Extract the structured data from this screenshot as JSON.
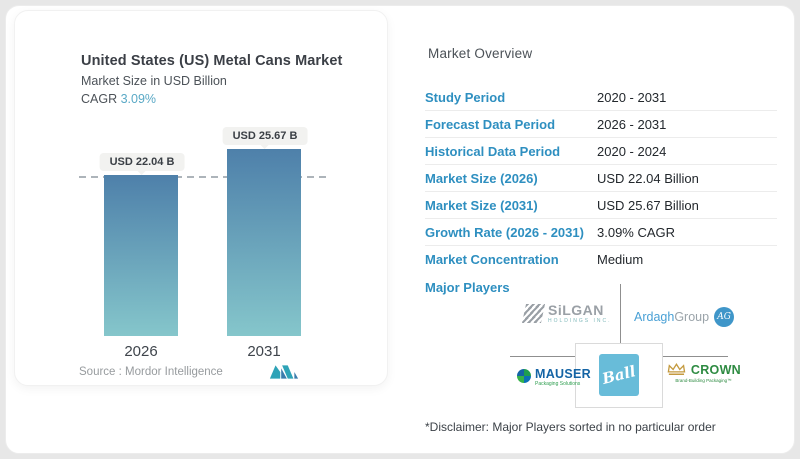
{
  "chart": {
    "title": "United States (US) Metal Cans Market",
    "subtitle": "Market Size in USD Billion",
    "cagr_label": "CAGR ",
    "cagr_value": "3.09%",
    "source_label": "Source :  ",
    "source_value": "Mordor Intelligence"
  },
  "chart_data": {
    "type": "bar",
    "categories": [
      "2026",
      "2031"
    ],
    "values": [
      22.04,
      25.67
    ],
    "value_labels": [
      "USD 22.04 B",
      "USD 25.67 B"
    ],
    "title": "United States (US) Metal Cans Market",
    "xlabel": "",
    "ylabel": "Market Size in USD Billion",
    "ylim": [
      0,
      25.67
    ],
    "legend": false,
    "grid": false,
    "dashed_reference_value": 22.04,
    "bar_gradient_top": "#4e80aa",
    "bar_gradient_bottom": "#85c6cb",
    "cagr": "3.09%"
  },
  "overview": {
    "title": "Market Overview",
    "rows": [
      {
        "label": "Study Period",
        "value": "2020 - 2031"
      },
      {
        "label": "Forecast Data Period",
        "value": "2026 - 2031"
      },
      {
        "label": "Historical Data Period",
        "value": "2020 - 2024"
      },
      {
        "label": "Market Size (2026)",
        "value": "USD 22.04 Billion"
      },
      {
        "label": "Market Size (2031)",
        "value": "USD 25.67 Billion"
      },
      {
        "label": "Growth Rate (2026 - 2031)",
        "value": "3.09% CAGR"
      },
      {
        "label": "Market Concentration",
        "value": "Medium"
      }
    ],
    "major_players_label": "Major Players",
    "disclaimer": "*Disclaimer: Major Players sorted in no particular order",
    "accent_color": "#2e8fc0"
  },
  "logos": {
    "silgan": {
      "name": "SiLGAN",
      "sub": "HOLDINGS INC."
    },
    "ardagh": {
      "name1": "Ardagh",
      "name2": "Group",
      "monogram": "AG"
    },
    "mauser": {
      "name": "MAUSER",
      "sub": "Packaging Solutions"
    },
    "ball": {
      "name": "Ball"
    },
    "crown": {
      "name": "CROWN",
      "sub": "Brand-Building Packaging™"
    }
  }
}
